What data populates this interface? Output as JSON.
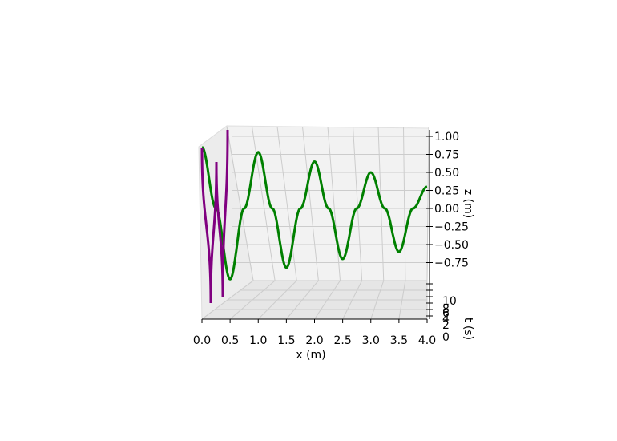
{
  "chart_data": {
    "type": "line",
    "projection": "3d",
    "title": "",
    "xlabel": "x (m)",
    "ylabel": "t (s)",
    "zlabel": "z (m)",
    "xlim": [
      0.0,
      4.0
    ],
    "ylim": [
      0,
      10
    ],
    "zlim": [
      -1.0,
      1.0
    ],
    "x_ticks": [
      "0.0",
      "0.5",
      "1.0",
      "1.5",
      "2.0",
      "2.5",
      "3.0",
      "3.5",
      "4.0"
    ],
    "y_ticks": [
      "0",
      "2",
      "4",
      "6",
      "8",
      "10"
    ],
    "z_ticks": [
      "1.00",
      "0.75",
      "0.50",
      "0.25",
      "0.00",
      "−0.25",
      "−0.50",
      "−0.75"
    ],
    "grid": true,
    "series": [
      {
        "color": "#008000",
        "x_samples": [
          0.0,
          0.25,
          0.5,
          0.75,
          1.0,
          1.25,
          1.5,
          1.75,
          2.0,
          2.25,
          2.5,
          2.75,
          3.0,
          3.25,
          3.5,
          3.75,
          4.0
        ],
        "z_samples": [
          0.85,
          0.0,
          -0.98,
          0.0,
          0.78,
          0.0,
          -0.82,
          0.0,
          0.65,
          0.0,
          -0.7,
          0.0,
          0.5,
          0.0,
          -0.6,
          0.0,
          0.3
        ]
      },
      {
        "color": "#800080",
        "x_approx": 0.1,
        "z_samples": [
          0.8,
          -0.95,
          0.85,
          -0.7,
          0.95
        ]
      }
    ],
    "colors": {
      "series_1": "#008000",
      "series_2": "#800080",
      "pane": "#f2f2f2",
      "grid": "#cccccc"
    }
  }
}
